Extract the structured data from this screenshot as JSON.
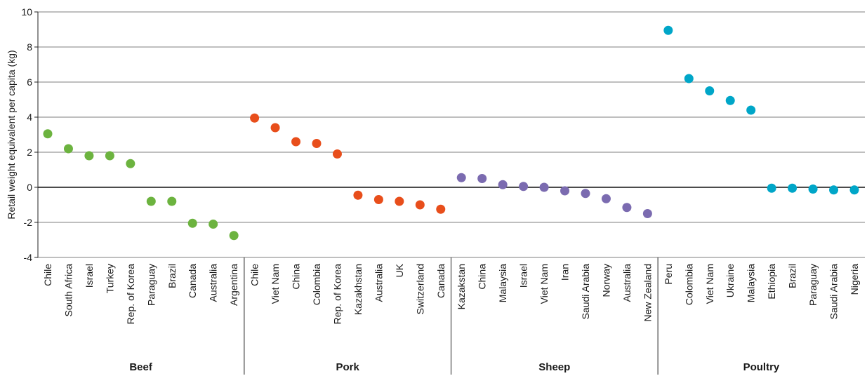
{
  "chart_data": {
    "type": "scatter",
    "title": "",
    "ylabel": "Retail weight equivalent per capita (kg)",
    "xlabel": "",
    "ylim": [
      -4,
      10
    ],
    "yticks": [
      -4,
      -2,
      0,
      2,
      4,
      6,
      8,
      10
    ],
    "grid": true,
    "groups": [
      {
        "name": "Beef",
        "color": "#6cb33f",
        "points": [
          {
            "label": "Chile",
            "value": 3.05
          },
          {
            "label": "South Africa",
            "value": 2.2
          },
          {
            "label": "Israel",
            "value": 1.8
          },
          {
            "label": "Turkey",
            "value": 1.8
          },
          {
            "label": "Rep. of Korea",
            "value": 1.35
          },
          {
            "label": "Paraguay",
            "value": -0.8
          },
          {
            "label": "Brazil",
            "value": -0.8
          },
          {
            "label": "Canada",
            "value": -2.05
          },
          {
            "label": "Australia",
            "value": -2.1
          },
          {
            "label": "Argentina",
            "value": -2.75
          }
        ]
      },
      {
        "name": "Pork",
        "color": "#e84e1b",
        "points": [
          {
            "label": "Chile",
            "value": 3.95
          },
          {
            "label": "Viet Nam",
            "value": 3.4
          },
          {
            "label": "China",
            "value": 2.6
          },
          {
            "label": "Colombia",
            "value": 2.5
          },
          {
            "label": "Rep. of Korea",
            "value": 1.9
          },
          {
            "label": "Kazakhstan",
            "value": -0.45
          },
          {
            "label": "Australia",
            "value": -0.7
          },
          {
            "label": "UK",
            "value": -0.8
          },
          {
            "label": "Switzerland",
            "value": -1.0
          },
          {
            "label": "Canada",
            "value": -1.25
          }
        ]
      },
      {
        "name": "Sheep",
        "color": "#7b6bb0",
        "points": [
          {
            "label": "Kazakstan",
            "value": 0.55
          },
          {
            "label": "China",
            "value": 0.5
          },
          {
            "label": "Malaysia",
            "value": 0.15
          },
          {
            "label": "Israel",
            "value": 0.05
          },
          {
            "label": "Viet Nam",
            "value": 0.0
          },
          {
            "label": "Iran",
            "value": -0.2
          },
          {
            "label": "Saudi Arabia",
            "value": -0.35
          },
          {
            "label": "Norway",
            "value": -0.65
          },
          {
            "label": "Australia",
            "value": -1.15
          },
          {
            "label": "New Zealand",
            "value": -1.5
          }
        ]
      },
      {
        "name": "Poultry",
        "color": "#00a6c8",
        "points": [
          {
            "label": "Peru",
            "value": 8.95
          },
          {
            "label": "Colombia",
            "value": 6.2
          },
          {
            "label": "Viet Nam",
            "value": 5.5
          },
          {
            "label": "Ukraine",
            "value": 4.95
          },
          {
            "label": "Malaysia",
            "value": 4.4
          },
          {
            "label": "Ethiopia",
            "value": -0.05
          },
          {
            "label": "Brazil",
            "value": -0.05
          },
          {
            "label": "Paraguay",
            "value": -0.1
          },
          {
            "label": "Saudi Arabia",
            "value": -0.15
          },
          {
            "label": "Nigeria",
            "value": -0.15
          }
        ]
      }
    ]
  }
}
